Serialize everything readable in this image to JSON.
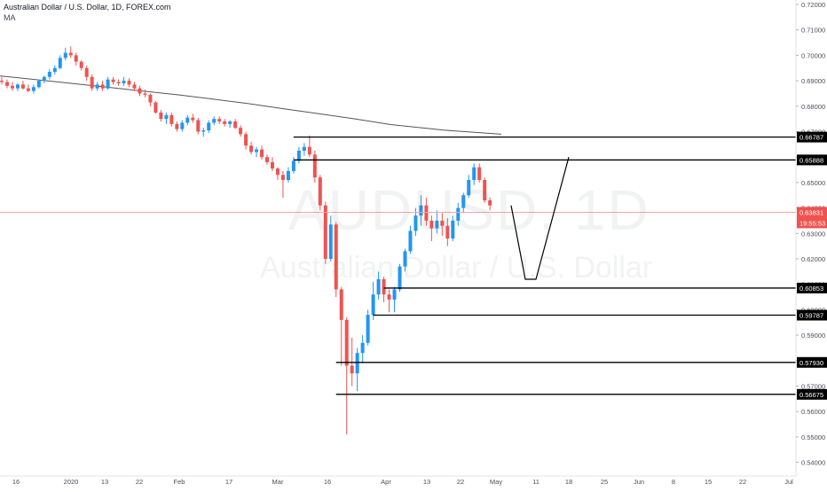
{
  "header": {
    "title": "Australian Dollar / U.S. Dollar, 1D, FOREX.com",
    "indicator": "MA"
  },
  "watermark": {
    "symbol": "AUDUSD, 1D",
    "description": "Australian Dollar / U.S. Dollar"
  },
  "colors": {
    "up": "#2196f3",
    "down": "#ef5350",
    "ma": "#555555",
    "level_line": "#000000",
    "price_line": "#f7a5a5",
    "axis_text": "#131722"
  },
  "chart_data": {
    "type": "candlestick",
    "symbol": "AUDUSD",
    "interval": "1D",
    "ylim": [
      0.535,
      0.7235
    ],
    "y_ticks": [
      "0.72000",
      "0.71000",
      "0.70000",
      "0.69000",
      "0.68000",
      "0.67000",
      "0.66000",
      "0.65000",
      "0.64000",
      "0.63000",
      "0.62000",
      "0.61000",
      "0.60000",
      "0.59000",
      "0.58000",
      "0.57000",
      "0.56000",
      "0.55000",
      "0.54000"
    ],
    "x_ticks": [
      "16",
      "2020",
      "13",
      "22",
      "Feb",
      "17",
      "Mar",
      "16",
      "Apr",
      "13",
      "22",
      "May",
      "11",
      "18",
      "25",
      "Jun",
      "8",
      "15",
      "22",
      "Jul"
    ],
    "candles": [
      {
        "o": 0.69,
        "h": 0.6915,
        "l": 0.6885,
        "c": 0.6895
      },
      {
        "o": 0.6895,
        "h": 0.6905,
        "l": 0.687,
        "c": 0.688
      },
      {
        "o": 0.688,
        "h": 0.6895,
        "l": 0.686,
        "c": 0.687
      },
      {
        "o": 0.687,
        "h": 0.689,
        "l": 0.686,
        "c": 0.6885
      },
      {
        "o": 0.6885,
        "h": 0.69,
        "l": 0.6865,
        "c": 0.687
      },
      {
        "o": 0.687,
        "h": 0.6885,
        "l": 0.6855,
        "c": 0.686
      },
      {
        "o": 0.686,
        "h": 0.6885,
        "l": 0.685,
        "c": 0.6875
      },
      {
        "o": 0.6875,
        "h": 0.6905,
        "l": 0.687,
        "c": 0.69
      },
      {
        "o": 0.69,
        "h": 0.692,
        "l": 0.689,
        "c": 0.6915
      },
      {
        "o": 0.6915,
        "h": 0.6945,
        "l": 0.6905,
        "c": 0.6935
      },
      {
        "o": 0.6935,
        "h": 0.696,
        "l": 0.6925,
        "c": 0.695
      },
      {
        "o": 0.695,
        "h": 0.7,
        "l": 0.6945,
        "c": 0.699
      },
      {
        "o": 0.699,
        "h": 0.703,
        "l": 0.698,
        "c": 0.701
      },
      {
        "o": 0.701,
        "h": 0.7035,
        "l": 0.699,
        "c": 0.7
      },
      {
        "o": 0.7,
        "h": 0.701,
        "l": 0.696,
        "c": 0.6975
      },
      {
        "o": 0.6975,
        "h": 0.698,
        "l": 0.694,
        "c": 0.695
      },
      {
        "o": 0.695,
        "h": 0.696,
        "l": 0.69,
        "c": 0.6915
      },
      {
        "o": 0.6915,
        "h": 0.6925,
        "l": 0.686,
        "c": 0.687
      },
      {
        "o": 0.687,
        "h": 0.6895,
        "l": 0.686,
        "c": 0.6885
      },
      {
        "o": 0.6885,
        "h": 0.69,
        "l": 0.686,
        "c": 0.687
      },
      {
        "o": 0.687,
        "h": 0.6915,
        "l": 0.6865,
        "c": 0.6905
      },
      {
        "o": 0.6905,
        "h": 0.6915,
        "l": 0.6885,
        "c": 0.6895
      },
      {
        "o": 0.6895,
        "h": 0.6905,
        "l": 0.688,
        "c": 0.689
      },
      {
        "o": 0.689,
        "h": 0.6915,
        "l": 0.688,
        "c": 0.69
      },
      {
        "o": 0.69,
        "h": 0.691,
        "l": 0.6875,
        "c": 0.6885
      },
      {
        "o": 0.6885,
        "h": 0.6895,
        "l": 0.686,
        "c": 0.687
      },
      {
        "o": 0.687,
        "h": 0.688,
        "l": 0.684,
        "c": 0.685
      },
      {
        "o": 0.685,
        "h": 0.6865,
        "l": 0.6835,
        "c": 0.6845
      },
      {
        "o": 0.6845,
        "h": 0.685,
        "l": 0.68,
        "c": 0.6815
      },
      {
        "o": 0.6815,
        "h": 0.682,
        "l": 0.677,
        "c": 0.6775
      },
      {
        "o": 0.6775,
        "h": 0.6785,
        "l": 0.674,
        "c": 0.675
      },
      {
        "o": 0.675,
        "h": 0.6775,
        "l": 0.673,
        "c": 0.6765
      },
      {
        "o": 0.6765,
        "h": 0.6775,
        "l": 0.672,
        "c": 0.673
      },
      {
        "o": 0.673,
        "h": 0.674,
        "l": 0.67,
        "c": 0.671
      },
      {
        "o": 0.671,
        "h": 0.6745,
        "l": 0.67,
        "c": 0.6735
      },
      {
        "o": 0.6735,
        "h": 0.6765,
        "l": 0.6725,
        "c": 0.6755
      },
      {
        "o": 0.6755,
        "h": 0.677,
        "l": 0.6735,
        "c": 0.6745
      },
      {
        "o": 0.6745,
        "h": 0.6755,
        "l": 0.669,
        "c": 0.67
      },
      {
        "o": 0.67,
        "h": 0.6715,
        "l": 0.668,
        "c": 0.6705
      },
      {
        "o": 0.6705,
        "h": 0.6745,
        "l": 0.6695,
        "c": 0.6735
      },
      {
        "o": 0.6735,
        "h": 0.676,
        "l": 0.6725,
        "c": 0.675
      },
      {
        "o": 0.675,
        "h": 0.676,
        "l": 0.673,
        "c": 0.674
      },
      {
        "o": 0.674,
        "h": 0.675,
        "l": 0.672,
        "c": 0.673
      },
      {
        "o": 0.673,
        "h": 0.6745,
        "l": 0.6715,
        "c": 0.674
      },
      {
        "o": 0.674,
        "h": 0.675,
        "l": 0.671,
        "c": 0.6715
      },
      {
        "o": 0.6715,
        "h": 0.6725,
        "l": 0.668,
        "c": 0.669
      },
      {
        "o": 0.669,
        "h": 0.67,
        "l": 0.663,
        "c": 0.6645
      },
      {
        "o": 0.6645,
        "h": 0.666,
        "l": 0.661,
        "c": 0.662
      },
      {
        "o": 0.662,
        "h": 0.664,
        "l": 0.66,
        "c": 0.663
      },
      {
        "o": 0.663,
        "h": 0.6645,
        "l": 0.659,
        "c": 0.66
      },
      {
        "o": 0.66,
        "h": 0.661,
        "l": 0.657,
        "c": 0.658
      },
      {
        "o": 0.658,
        "h": 0.66,
        "l": 0.6545,
        "c": 0.6555
      },
      {
        "o": 0.6555,
        "h": 0.656,
        "l": 0.651,
        "c": 0.653
      },
      {
        "o": 0.653,
        "h": 0.6545,
        "l": 0.644,
        "c": 0.651
      },
      {
        "o": 0.651,
        "h": 0.656,
        "l": 0.65,
        "c": 0.6545
      },
      {
        "o": 0.6545,
        "h": 0.66,
        "l": 0.6535,
        "c": 0.6585
      },
      {
        "o": 0.6585,
        "h": 0.664,
        "l": 0.6575,
        "c": 0.6625
      },
      {
        "o": 0.6625,
        "h": 0.6655,
        "l": 0.6605,
        "c": 0.664
      },
      {
        "o": 0.664,
        "h": 0.6685,
        "l": 0.66,
        "c": 0.661
      },
      {
        "o": 0.661,
        "h": 0.6625,
        "l": 0.65,
        "c": 0.652
      },
      {
        "o": 0.652,
        "h": 0.653,
        "l": 0.639,
        "c": 0.641
      },
      {
        "o": 0.641,
        "h": 0.6425,
        "l": 0.618,
        "c": 0.62
      },
      {
        "o": 0.62,
        "h": 0.637,
        "l": 0.619,
        "c": 0.6335
      },
      {
        "o": 0.6335,
        "h": 0.6345,
        "l": 0.605,
        "c": 0.608
      },
      {
        "o": 0.608,
        "h": 0.609,
        "l": 0.578,
        "c": 0.596
      },
      {
        "o": 0.596,
        "h": 0.597,
        "l": 0.551,
        "c": 0.578
      },
      {
        "o": 0.578,
        "h": 0.589,
        "l": 0.57,
        "c": 0.575
      },
      {
        "o": 0.575,
        "h": 0.585,
        "l": 0.568,
        "c": 0.583
      },
      {
        "o": 0.583,
        "h": 0.59,
        "l": 0.579,
        "c": 0.587
      },
      {
        "o": 0.587,
        "h": 0.6,
        "l": 0.586,
        "c": 0.598
      },
      {
        "o": 0.598,
        "h": 0.611,
        "l": 0.596,
        "c": 0.606
      },
      {
        "o": 0.606,
        "h": 0.615,
        "l": 0.604,
        "c": 0.612
      },
      {
        "o": 0.612,
        "h": 0.613,
        "l": 0.603,
        "c": 0.606
      },
      {
        "o": 0.606,
        "h": 0.608,
        "l": 0.599,
        "c": 0.604
      },
      {
        "o": 0.604,
        "h": 0.609,
        "l": 0.599,
        "c": 0.608
      },
      {
        "o": 0.608,
        "h": 0.618,
        "l": 0.607,
        "c": 0.617
      },
      {
        "o": 0.617,
        "h": 0.624,
        "l": 0.615,
        "c": 0.623
      },
      {
        "o": 0.623,
        "h": 0.633,
        "l": 0.622,
        "c": 0.631
      },
      {
        "o": 0.631,
        "h": 0.64,
        "l": 0.629,
        "c": 0.637
      },
      {
        "o": 0.637,
        "h": 0.645,
        "l": 0.633,
        "c": 0.641
      },
      {
        "o": 0.641,
        "h": 0.644,
        "l": 0.633,
        "c": 0.635
      },
      {
        "o": 0.635,
        "h": 0.637,
        "l": 0.627,
        "c": 0.632
      },
      {
        "o": 0.632,
        "h": 0.639,
        "l": 0.63,
        "c": 0.635
      },
      {
        "o": 0.635,
        "h": 0.638,
        "l": 0.629,
        "c": 0.633
      },
      {
        "o": 0.633,
        "h": 0.636,
        "l": 0.625,
        "c": 0.628
      },
      {
        "o": 0.628,
        "h": 0.637,
        "l": 0.627,
        "c": 0.635
      },
      {
        "o": 0.635,
        "h": 0.642,
        "l": 0.633,
        "c": 0.64
      },
      {
        "o": 0.64,
        "h": 0.646,
        "l": 0.638,
        "c": 0.645
      },
      {
        "o": 0.645,
        "h": 0.653,
        "l": 0.644,
        "c": 0.651
      },
      {
        "o": 0.651,
        "h": 0.6575,
        "l": 0.649,
        "c": 0.656
      },
      {
        "o": 0.656,
        "h": 0.6575,
        "l": 0.65,
        "c": 0.651
      },
      {
        "o": 0.651,
        "h": 0.652,
        "l": 0.642,
        "c": 0.643
      },
      {
        "o": 0.643,
        "h": 0.644,
        "l": 0.639,
        "c": 0.641
      }
    ],
    "moving_average": [
      0.6919,
      0.6905,
      0.689,
      0.6875,
      0.686,
      0.6845,
      0.6828,
      0.681,
      0.679,
      0.677,
      0.675,
      0.6728,
      0.6706,
      0.669
    ],
    "horizontal_levels": [
      {
        "price": 0.66787,
        "label": "0.66787",
        "start_index": 55
      },
      {
        "price": 0.65888,
        "label": "0.65888",
        "start_index": 55
      },
      {
        "price": 0.60853,
        "label": "0.60853",
        "start_index": 72
      },
      {
        "price": 0.59787,
        "label": "0.59787",
        "start_index": 70
      },
      {
        "price": 0.5793,
        "label": "0.57930",
        "start_index": 63
      },
      {
        "price": 0.56675,
        "label": "0.56675",
        "start_index": 63
      }
    ],
    "last_price": {
      "price": 0.63831,
      "label": "0.63831",
      "countdown": "19:55:53"
    },
    "projection_path": [
      {
        "date": "May 4",
        "price": 0.641
      },
      {
        "date": "May 11",
        "price": 0.612
      },
      {
        "date": "May 11",
        "price": 0.612
      },
      {
        "date": "May 18",
        "price": 0.66
      }
    ]
  }
}
